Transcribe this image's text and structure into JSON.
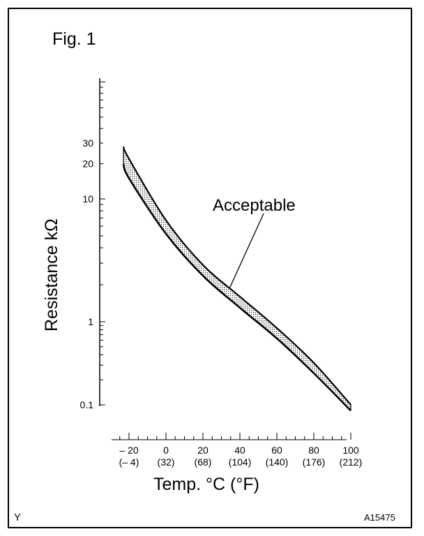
{
  "chart_data": {
    "type": "area",
    "title": "Fig. 1",
    "xlabel": "Temp. °C (°F)",
    "ylabel": "Resistance kΩ",
    "yscale": "log",
    "ylim": [
      0.1,
      100
    ],
    "xlim": [
      -25,
      100
    ],
    "x_ticks": [
      {
        "c": -20,
        "label": "– 20",
        "f_label": "(– 4)"
      },
      {
        "c": 0,
        "label": "0",
        "f_label": "(32)"
      },
      {
        "c": 20,
        "label": "20",
        "f_label": "(68)"
      },
      {
        "c": 40,
        "label": "40",
        "f_label": "(104)"
      },
      {
        "c": 60,
        "label": "60",
        "f_label": "(140)"
      },
      {
        "c": 80,
        "label": "80",
        "f_label": "(176)"
      },
      {
        "c": 100,
        "label": "100",
        "f_label": "(212)"
      }
    ],
    "y_ticks": [
      {
        "v": 30,
        "label": "30"
      },
      {
        "v": 20,
        "label": "20"
      },
      {
        "v": 10,
        "label": "10"
      },
      {
        "v": 1,
        "label": "1"
      },
      {
        "v": 0.1,
        "label": "0.1"
      }
    ],
    "x": [
      -23,
      -20,
      0,
      20,
      40,
      60,
      80,
      100
    ],
    "series": [
      {
        "name": "upper limit",
        "values": [
          28,
          22,
          6.7,
          2.9,
          1.6,
          0.84,
          0.32,
          0.1
        ]
      },
      {
        "name": "lower limit",
        "values": [
          20,
          15,
          5.2,
          2.37,
          1.3,
          0.63,
          0.24,
          0.085
        ]
      }
    ],
    "annotation": "Acceptable",
    "grid": false
  },
  "footer": {
    "left_mark": "Y",
    "figure_code": "A15475"
  }
}
